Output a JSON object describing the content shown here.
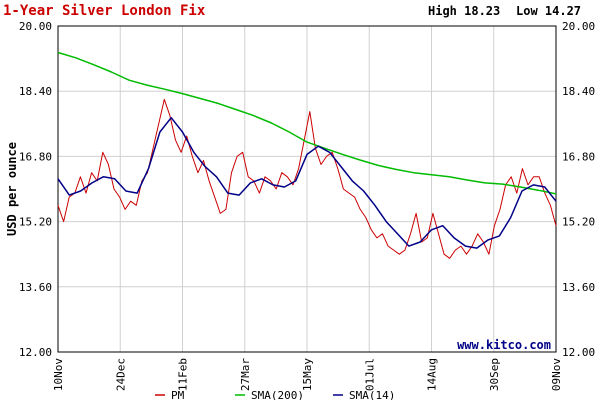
{
  "chart_data": {
    "type": "line",
    "title": "1-Year Silver London Fix",
    "high_label": "High 18.23",
    "low_label": "Low 14.27",
    "ylabel": "USD per ounce",
    "watermark": "www.kitco.com",
    "ylim": [
      12.0,
      20.0
    ],
    "y_ticks": [
      "12.00",
      "13.60",
      "15.20",
      "16.80",
      "18.40",
      "20.00"
    ],
    "x_ticks": [
      "10Nov",
      "24Dec",
      "11Feb",
      "27Mar",
      "15May",
      "01Jul",
      "14Aug",
      "30Sep",
      "09Nov"
    ],
    "grid": true,
    "legend_position": "bottom",
    "colors": {
      "title": "#cc0000",
      "pm": "#cc0000",
      "sma200": "#00bb00",
      "sma14": "#000088",
      "grid": "#d0d0d0"
    },
    "series": [
      {
        "name": "PM",
        "values": [
          15.6,
          15.2,
          15.8,
          15.9,
          16.3,
          15.9,
          16.4,
          16.2,
          16.9,
          16.6,
          16.0,
          15.8,
          15.5,
          15.7,
          15.6,
          16.2,
          16.4,
          17.0,
          17.6,
          18.2,
          17.8,
          17.2,
          16.9,
          17.3,
          16.8,
          16.4,
          16.7,
          16.2,
          15.8,
          15.4,
          15.5,
          16.4,
          16.8,
          16.9,
          16.3,
          16.2,
          15.9,
          16.3,
          16.2,
          16.0,
          16.4,
          16.3,
          16.1,
          16.5,
          17.2,
          17.9,
          17.0,
          16.6,
          16.8,
          16.9,
          16.5,
          16.0,
          15.9,
          15.8,
          15.5,
          15.3,
          15.0,
          14.8,
          14.9,
          14.6,
          14.5,
          14.4,
          14.5,
          14.9,
          15.4,
          14.7,
          14.8,
          15.4,
          14.9,
          14.4,
          14.3,
          14.5,
          14.6,
          14.4,
          14.6,
          14.9,
          14.7,
          14.4,
          15.1,
          15.5,
          16.1,
          16.3,
          15.9,
          16.5,
          16.1,
          16.3,
          16.3,
          15.9,
          15.6,
          15.1
        ]
      },
      {
        "name": "SMA(200)",
        "values": [
          19.35,
          19.22,
          19.05,
          18.87,
          18.67,
          18.55,
          18.45,
          18.34,
          18.22,
          18.1,
          17.95,
          17.8,
          17.62,
          17.4,
          17.15,
          17.0,
          16.85,
          16.71,
          16.58,
          16.48,
          16.4,
          16.35,
          16.3,
          16.22,
          16.15,
          16.12,
          16.05,
          15.97,
          15.88
        ]
      },
      {
        "name": "SMA(14)",
        "values": [
          16.25,
          15.85,
          15.95,
          16.15,
          16.3,
          16.25,
          15.95,
          15.9,
          16.5,
          17.4,
          17.75,
          17.4,
          16.9,
          16.55,
          16.3,
          15.9,
          15.85,
          16.15,
          16.25,
          16.1,
          16.05,
          16.2,
          16.85,
          17.05,
          16.9,
          16.55,
          16.2,
          15.95,
          15.6,
          15.2,
          14.9,
          14.6,
          14.7,
          15.0,
          15.1,
          14.8,
          14.6,
          14.55,
          14.75,
          14.85,
          15.3,
          15.95,
          16.1,
          16.05,
          15.7
        ]
      }
    ]
  }
}
